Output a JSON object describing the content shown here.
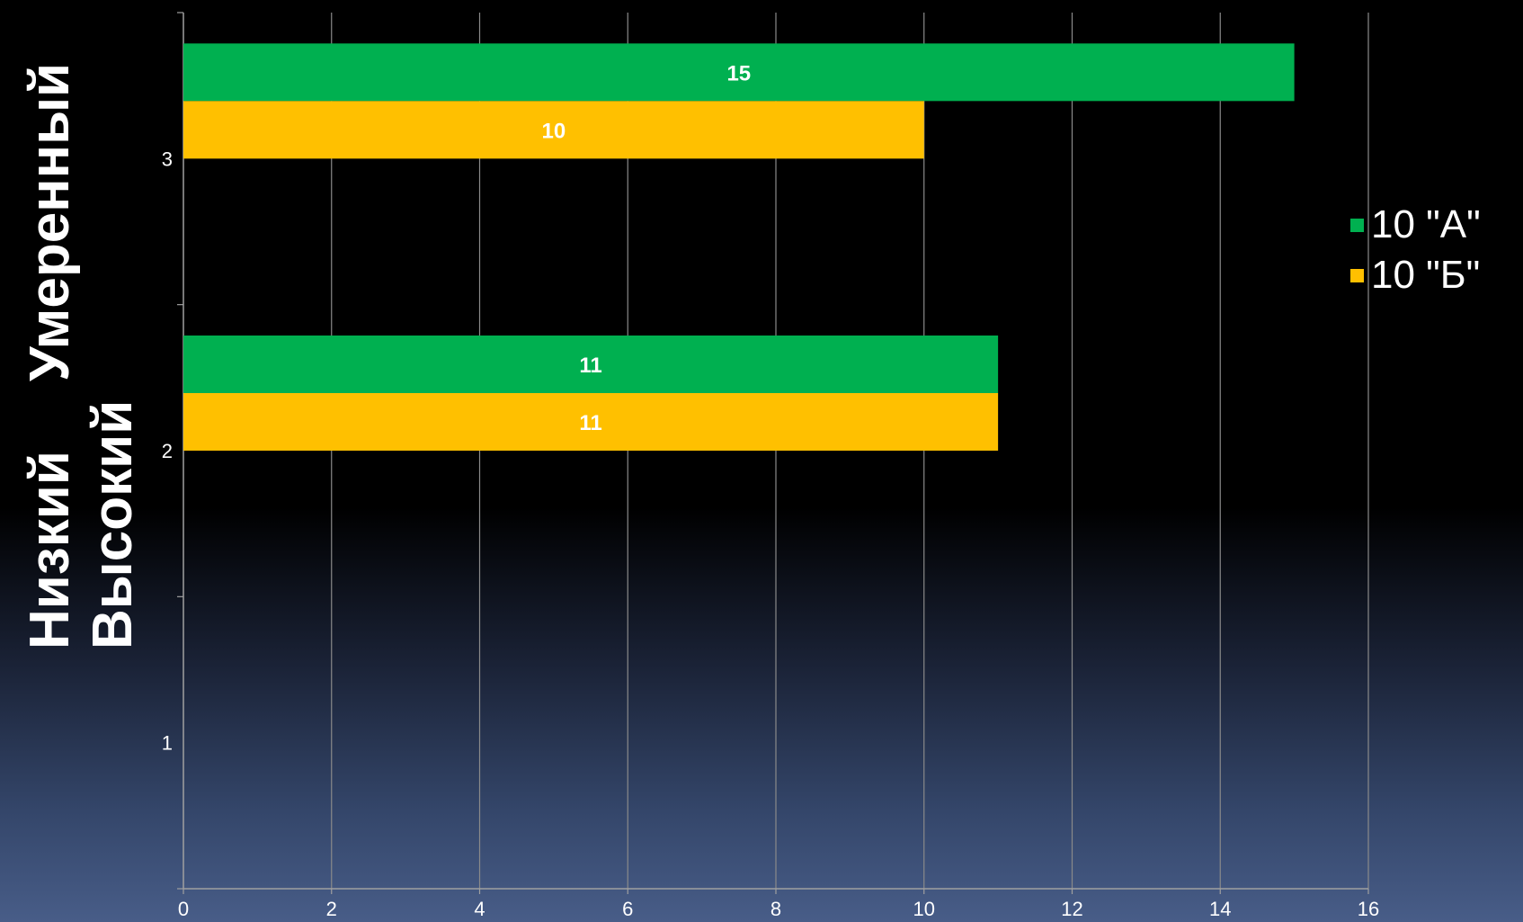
{
  "y_axis_words": [
    "Умеренный",
    "Низкий",
    "Высокий"
  ],
  "chart_data": {
    "type": "bar",
    "orientation": "horizontal",
    "categories": [
      "1",
      "2",
      "3"
    ],
    "series": [
      {
        "name": "10 \"А\"",
        "color": "#00b050",
        "values": [
          null,
          11,
          15
        ]
      },
      {
        "name": "10 \"Б\"",
        "color": "#ffc000",
        "values": [
          null,
          11,
          10
        ]
      }
    ],
    "xlim": [
      0,
      16
    ],
    "x_ticks": [
      "0",
      "2",
      "4",
      "6",
      "8",
      "10",
      "12",
      "14",
      "16"
    ],
    "grid": true,
    "legend_position": "right",
    "data_labels": true
  }
}
